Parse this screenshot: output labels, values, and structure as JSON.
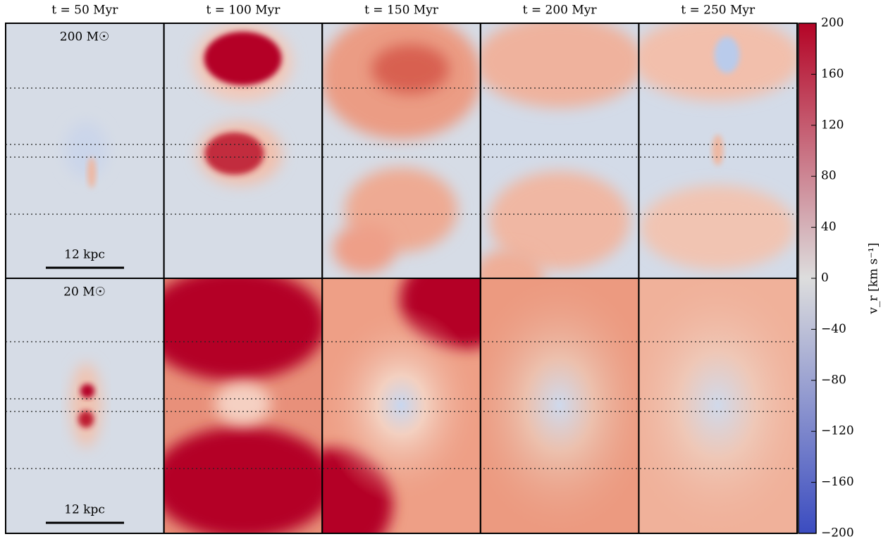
{
  "chart_data": {
    "type": "image-grid",
    "columns": [
      "t = 50 Myr",
      "t = 100 Myr",
      "t = 150 Myr",
      "t = 200 Myr",
      "t = 250 Myr"
    ],
    "rows": [
      {
        "label": "200 M☉",
        "scale_bar": "12 kpc"
      },
      {
        "label": "20 M☉",
        "scale_bar": "12 kpc"
      }
    ],
    "colorbar": {
      "label": "v_r [km s⁻¹]",
      "lim": [
        -200,
        200
      ],
      "ticks": [
        {
          "value": -200,
          "label": "−200"
        },
        {
          "value": -160,
          "label": "−160"
        },
        {
          "value": -120,
          "label": "−120"
        },
        {
          "value": -80,
          "label": "−80"
        },
        {
          "value": -40,
          "label": "−40"
        },
        0,
        40,
        80,
        120,
        160,
        200
      ],
      "colors": [
        "#3b4cc0",
        "#dddddd",
        "#b40426"
      ]
    }
  }
}
